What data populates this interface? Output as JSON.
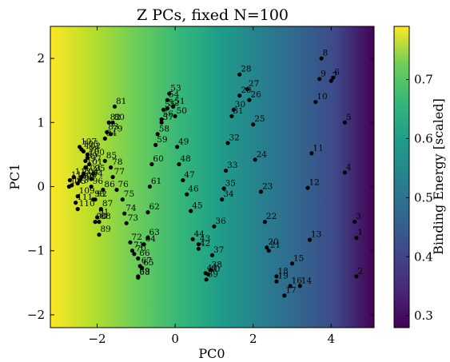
{
  "chart_data": {
    "type": "scatter",
    "title": "Z PCs, fixed N=100",
    "xlabel": "PC0",
    "ylabel": "PC1",
    "colorbar_label": "Binding Energy [scaled]",
    "xlim": [
      -3.2,
      5.1
    ],
    "ylim": [
      -2.2,
      2.5
    ],
    "xticks": [
      -2,
      0,
      2,
      4
    ],
    "yticks": [
      -2,
      -1,
      0,
      1,
      2
    ],
    "xtick_labels": [
      "−2",
      "0",
      "2",
      "4"
    ],
    "ytick_labels": [
      "−2",
      "−1",
      "0",
      "1",
      "2"
    ],
    "colorbar_range": [
      0.28,
      0.79
    ],
    "colorbar_ticks": [
      0.3,
      0.4,
      0.5,
      0.6,
      0.7
    ],
    "colorbar_tick_labels": [
      "0.3",
      "0.4",
      "0.5",
      "0.6",
      "0.7"
    ],
    "colormap": "viridis",
    "points": [
      {
        "label": "1",
        "x": 4.65,
        "y": -0.8
      },
      {
        "label": "2",
        "x": 4.65,
        "y": -1.4
      },
      {
        "label": "3",
        "x": 4.6,
        "y": -0.55
      },
      {
        "label": "4",
        "x": 4.35,
        "y": 0.22
      },
      {
        "label": "5",
        "x": 4.35,
        "y": 1.0
      },
      {
        "label": "6",
        "x": 4.05,
        "y": 1.7
      },
      {
        "label": "7",
        "x": 4.0,
        "y": 1.65
      },
      {
        "label": "8",
        "x": 3.75,
        "y": 2.0
      },
      {
        "label": "9",
        "x": 3.7,
        "y": 1.68
      },
      {
        "label": "10",
        "x": 3.6,
        "y": 1.32
      },
      {
        "label": "11",
        "x": 3.5,
        "y": 0.52
      },
      {
        "label": "12",
        "x": 3.4,
        "y": -0.02
      },
      {
        "label": "13",
        "x": 3.45,
        "y": -0.83
      },
      {
        "label": "14",
        "x": 3.2,
        "y": -1.55
      },
      {
        "label": "15",
        "x": 3.0,
        "y": -1.2
      },
      {
        "label": "16",
        "x": 2.95,
        "y": -1.55
      },
      {
        "label": "17",
        "x": 2.8,
        "y": -1.7
      },
      {
        "label": "18",
        "x": 2.6,
        "y": -1.4
      },
      {
        "label": "19",
        "x": 2.6,
        "y": -1.48
      },
      {
        "label": "20",
        "x": 2.35,
        "y": -0.95
      },
      {
        "label": "21",
        "x": 2.4,
        "y": -1.0
      },
      {
        "label": "22",
        "x": 2.3,
        "y": -0.55
      },
      {
        "label": "23",
        "x": 2.2,
        "y": -0.08
      },
      {
        "label": "24",
        "x": 2.05,
        "y": 0.42
      },
      {
        "label": "25",
        "x": 2.0,
        "y": 0.97
      },
      {
        "label": "26",
        "x": 1.9,
        "y": 1.35
      },
      {
        "label": "27",
        "x": 1.85,
        "y": 1.52
      },
      {
        "label": "28",
        "x": 1.65,
        "y": 1.75
      },
      {
        "label": "29",
        "x": 1.65,
        "y": 1.42
      },
      {
        "label": "30",
        "x": 1.5,
        "y": 1.2
      },
      {
        "label": "31",
        "x": 1.45,
        "y": 1.1
      },
      {
        "label": "32",
        "x": 1.35,
        "y": 0.68
      },
      {
        "label": "33",
        "x": 1.3,
        "y": 0.25
      },
      {
        "label": "34",
        "x": 1.2,
        "y": -0.2
      },
      {
        "label": "35",
        "x": 1.25,
        "y": -0.03
      },
      {
        "label": "36",
        "x": 1.0,
        "y": -0.62
      },
      {
        "label": "37",
        "x": 0.95,
        "y": -1.07
      },
      {
        "label": "38",
        "x": 0.9,
        "y": -1.3
      },
      {
        "label": "39",
        "x": 0.8,
        "y": -1.45
      },
      {
        "label": "40",
        "x": 0.85,
        "y": -1.37
      },
      {
        "label": "41",
        "x": 0.78,
        "y": -1.35
      },
      {
        "label": "42",
        "x": 0.6,
        "y": -0.97
      },
      {
        "label": "43",
        "x": 0.6,
        "y": -0.9
      },
      {
        "label": "44",
        "x": 0.45,
        "y": -0.82
      },
      {
        "label": "45",
        "x": 0.4,
        "y": -0.38
      },
      {
        "label": "46",
        "x": 0.3,
        "y": -0.12
      },
      {
        "label": "47",
        "x": 0.2,
        "y": 0.1
      },
      {
        "label": "48",
        "x": 0.1,
        "y": 0.35
      },
      {
        "label": "49",
        "x": 0.05,
        "y": 0.62
      },
      {
        "label": "50",
        "x": 0.0,
        "y": 1.1
      },
      {
        "label": "51",
        "x": -0.05,
        "y": 1.25
      },
      {
        "label": "52",
        "x": -0.2,
        "y": 1.22
      },
      {
        "label": "53",
        "x": -0.15,
        "y": 1.45
      },
      {
        "label": "54",
        "x": -0.2,
        "y": 1.35
      },
      {
        "label": "55",
        "x": -0.3,
        "y": 1.2
      },
      {
        "label": "56",
        "x": -0.35,
        "y": 1.05
      },
      {
        "label": "57",
        "x": -0.35,
        "y": 1.0
      },
      {
        "label": "58",
        "x": -0.45,
        "y": 0.82
      },
      {
        "label": "59",
        "x": -0.5,
        "y": 0.65
      },
      {
        "label": "60",
        "x": -0.6,
        "y": 0.35
      },
      {
        "label": "61",
        "x": -0.65,
        "y": 0.0
      },
      {
        "label": "62",
        "x": -0.7,
        "y": -0.4
      },
      {
        "label": "63",
        "x": -0.7,
        "y": -0.8
      },
      {
        "label": "64",
        "x": -0.8,
        "y": -0.9
      },
      {
        "label": "65",
        "x": -0.85,
        "y": -1.27
      },
      {
        "label": "66",
        "x": -0.95,
        "y": -1.12
      },
      {
        "label": "67",
        "x": -0.9,
        "y": -1.24
      },
      {
        "label": "68",
        "x": -0.95,
        "y": -1.42
      },
      {
        "label": "69",
        "x": -0.95,
        "y": -1.4
      },
      {
        "label": "70",
        "x": -1.05,
        "y": -1.05
      },
      {
        "label": "71",
        "x": -1.1,
        "y": -1.0
      },
      {
        "label": "72",
        "x": -1.15,
        "y": -0.87
      },
      {
        "label": "73",
        "x": -1.25,
        "y": -0.57
      },
      {
        "label": "74",
        "x": -1.3,
        "y": -0.42
      },
      {
        "label": "75",
        "x": -1.35,
        "y": -0.2
      },
      {
        "label": "76",
        "x": -1.5,
        "y": -0.05
      },
      {
        "label": "77",
        "x": -1.6,
        "y": 0.15
      },
      {
        "label": "78",
        "x": -1.65,
        "y": 0.3
      },
      {
        "label": "79",
        "x": -1.65,
        "y": 0.82
      },
      {
        "label": "80",
        "x": -1.6,
        "y": 1.0
      },
      {
        "label": "81",
        "x": -1.55,
        "y": 1.25
      },
      {
        "label": "82",
        "x": -1.7,
        "y": 1.0
      },
      {
        "label": "83",
        "x": -1.75,
        "y": 0.85
      },
      {
        "label": "84",
        "x": -1.8,
        "y": 0.75
      },
      {
        "label": "85",
        "x": -1.8,
        "y": 0.4
      },
      {
        "label": "86",
        "x": -1.85,
        "y": -0.05
      },
      {
        "label": "87",
        "x": -1.9,
        "y": -0.35
      },
      {
        "label": "88",
        "x": -1.95,
        "y": -0.55
      },
      {
        "label": "89",
        "x": -1.95,
        "y": -0.75
      },
      {
        "label": "90",
        "x": -2.05,
        "y": -0.55
      },
      {
        "label": "91",
        "x": -2.0,
        "y": -0.48
      },
      {
        "label": "92",
        "x": -2.05,
        "y": -0.2
      },
      {
        "label": "93",
        "x": -2.1,
        "y": -0.2
      },
      {
        "label": "94",
        "x": -2.15,
        "y": 0.12
      },
      {
        "label": "95",
        "x": -2.1,
        "y": 0.2
      },
      {
        "label": "96",
        "x": -2.15,
        "y": 0.0
      },
      {
        "label": "97",
        "x": -2.2,
        "y": 0.35
      },
      {
        "label": "98",
        "x": -2.25,
        "y": 0.5
      },
      {
        "label": "99",
        "x": -2.3,
        "y": 0.4
      },
      {
        "label": "100",
        "x": -2.25,
        "y": 0.45
      },
      {
        "label": "101",
        "x": -2.3,
        "y": 0.3
      },
      {
        "label": "102",
        "x": -2.35,
        "y": 0.55
      },
      {
        "label": "103",
        "x": -2.35,
        "y": 0.2
      },
      {
        "label": "104",
        "x": -2.4,
        "y": 0.15
      },
      {
        "label": "105",
        "x": -2.4,
        "y": 0.58
      },
      {
        "label": "106",
        "x": -2.45,
        "y": 0.1
      },
      {
        "label": "107",
        "x": -2.45,
        "y": 0.62
      },
      {
        "label": "108",
        "x": -2.5,
        "y": 0.05
      },
      {
        "label": "109",
        "x": -2.5,
        "y": -0.15
      },
      {
        "label": "110",
        "x": -2.5,
        "y": -0.35
      },
      {
        "label": "111",
        "x": -2.55,
        "y": -0.25
      },
      {
        "label": "112",
        "x": -2.6,
        "y": 0.15
      },
      {
        "label": "113",
        "x": -2.65,
        "y": 0.02
      },
      {
        "label": "114",
        "x": -2.7,
        "y": 0.1
      },
      {
        "label": "115",
        "x": -2.72,
        "y": 0.0
      }
    ]
  }
}
